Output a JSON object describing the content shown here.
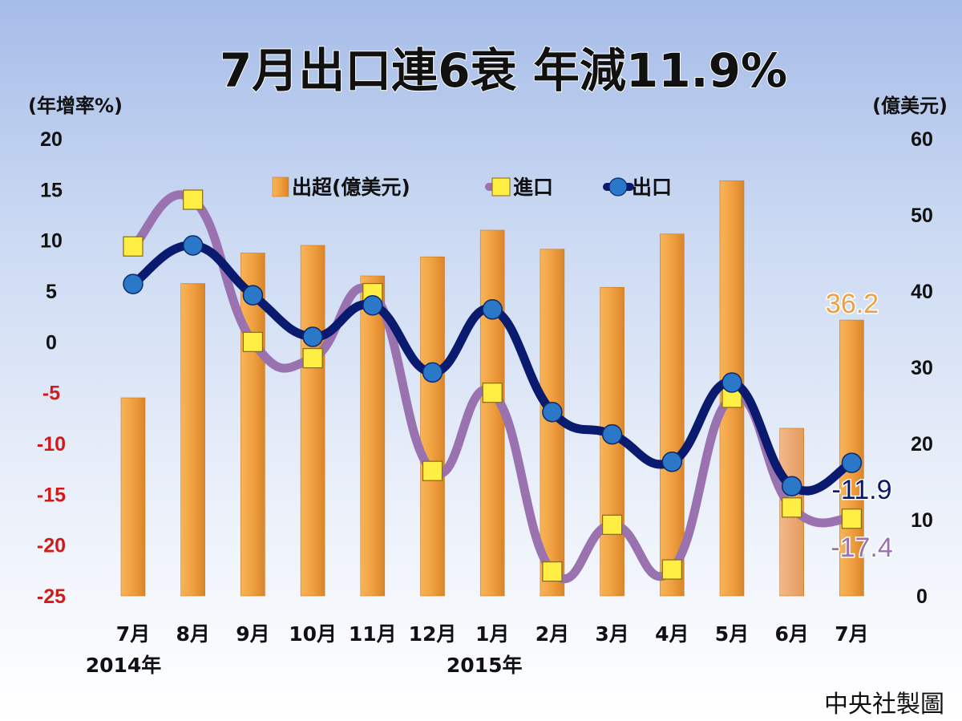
{
  "title": "7月出口連6衰  年減11.9%",
  "credit": "中央社製圖",
  "chart_data": {
    "type": "bar",
    "title": "7月出口連6衰  年減11.9%",
    "categories": [
      "7月",
      "8月",
      "9月",
      "10月",
      "11月",
      "12月",
      "1月",
      "2月",
      "3月",
      "4月",
      "5月",
      "6月",
      "7月"
    ],
    "year_labels": [
      {
        "text": "2014年",
        "category_index": 0
      },
      {
        "text": "2015年",
        "category_index": 6
      }
    ],
    "left_axis": {
      "label": "(年增率%)",
      "ylim": [
        -25,
        20
      ],
      "ticks": [
        20,
        15,
        10,
        5,
        0,
        -5,
        -10,
        -15,
        -20,
        -25
      ],
      "tick_labels": [
        "20",
        "15",
        "10",
        "5",
        "0",
        "-5",
        "-10",
        "-15",
        "-20",
        "-25"
      ]
    },
    "right_axis": {
      "label": "(億美元)",
      "ylim": [
        0,
        60
      ],
      "ticks": [
        60,
        50,
        40,
        30,
        20,
        10,
        0
      ],
      "tick_labels": [
        "60",
        "50",
        "40",
        "30",
        "20",
        "10",
        "0"
      ]
    },
    "series": [
      {
        "name": "出超(億美元)",
        "type": "bar",
        "axis": "right",
        "color": "#f0a040",
        "values": [
          26.0,
          41.0,
          45.0,
          46.0,
          42.0,
          44.5,
          48.0,
          45.5,
          40.5,
          47.5,
          54.5,
          22.0,
          36.2
        ],
        "highlight_index": 11
      },
      {
        "name": "進口",
        "type": "line",
        "axis": "left",
        "color": "#9a72b0",
        "marker_color": "#ffee44",
        "values": [
          9.4,
          14.0,
          0.0,
          -1.6,
          4.8,
          -12.7,
          -5.0,
          -22.6,
          -18.0,
          -22.4,
          -5.5,
          -16.3,
          -17.4
        ]
      },
      {
        "name": "出口",
        "type": "line",
        "axis": "left",
        "color": "#0a1a6e",
        "marker_color": "#2c78c8",
        "values": [
          5.7,
          9.5,
          4.6,
          0.5,
          3.6,
          -3.0,
          3.2,
          -6.9,
          -9.1,
          -11.8,
          -4.0,
          -14.2,
          -11.9
        ]
      }
    ],
    "annotations": [
      {
        "text": "36.2",
        "series": "出超(億美元)",
        "category_index": 12,
        "color": "#f0a040"
      },
      {
        "text": "-11.9",
        "series": "出口",
        "category_index": 12,
        "color": "#0a1a6e"
      },
      {
        "text": "-17.4",
        "series": "進口",
        "category_index": 12,
        "color": "#9a72b0"
      }
    ],
    "legend": {
      "position": "top-center",
      "entries": [
        "出超(億美元)",
        "進口",
        "出口"
      ]
    },
    "grid": false,
    "colors": {
      "negative_tick": "#d11a1a",
      "positive_tick": "#111111"
    }
  }
}
